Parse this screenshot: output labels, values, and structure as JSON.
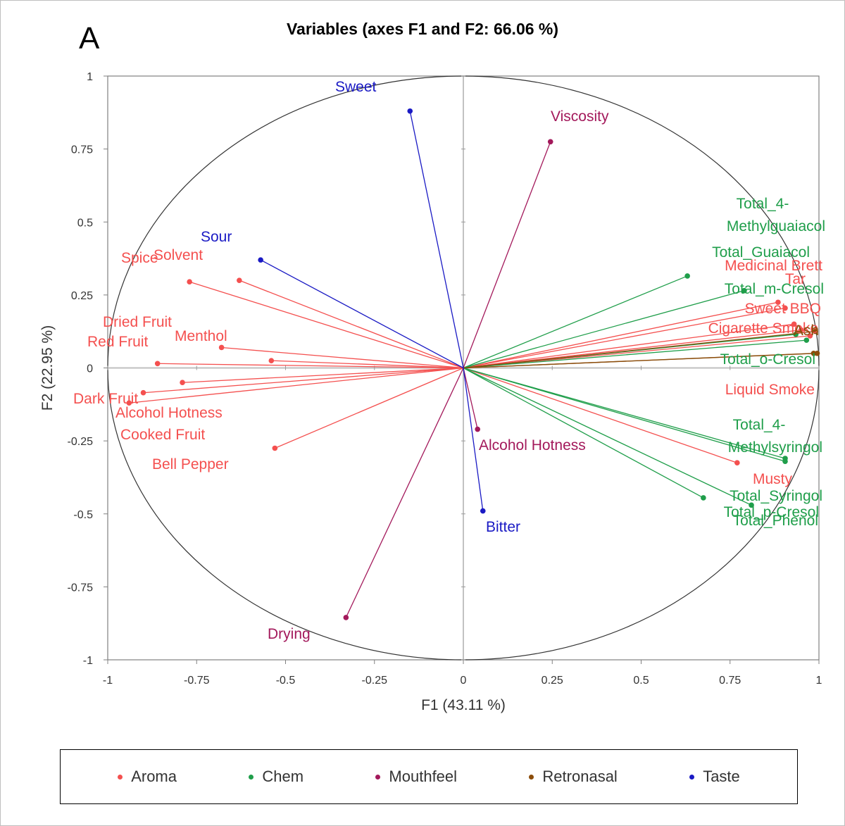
{
  "panel_label": "A",
  "chart_data": {
    "type": "scatter",
    "title": "Variables (axes F1 and F2: 66.06 %)",
    "xlabel": "F1 (43.11 %)",
    "ylabel": "F2 (22.95 %)",
    "xlim": [
      -1,
      1
    ],
    "ylim": [
      -1,
      1
    ],
    "x_ticks": [
      "-1",
      "-0.75",
      "-0.5",
      "-0.25",
      "0",
      "0.25",
      "0.5",
      "0.75",
      "1"
    ],
    "y_ticks": [
      "1",
      "0.75",
      "0.5",
      "0.25",
      "0",
      "-0.25",
      "-0.5",
      "-0.75",
      "-1"
    ],
    "correlation_circle": true,
    "legend_position": "bottom",
    "series": [
      {
        "name": "Aroma",
        "color": "#f4504f",
        "points": [
          {
            "label": "Spice",
            "x": -0.77,
            "y": 0.295
          },
          {
            "label": "Solvent",
            "x": -0.63,
            "y": 0.3
          },
          {
            "label": "Dried Fruit",
            "x": -0.54,
            "y": 0.025
          },
          {
            "label": "Red Fruit",
            "x": -0.86,
            "y": 0.015
          },
          {
            "label": "Menthol",
            "x": -0.68,
            "y": 0.07
          },
          {
            "label": "Dark Fruit",
            "x": -0.9,
            "y": -0.085
          },
          {
            "label": "Alcohol Hotness",
            "x": -0.94,
            "y": -0.12
          },
          {
            "label": "Cooked Fruit",
            "x": -0.79,
            "y": -0.05
          },
          {
            "label": "Bell Pepper",
            "x": -0.53,
            "y": -0.275
          },
          {
            "label": "Medicinal Brett",
            "x": 0.885,
            "y": 0.225
          },
          {
            "label": "Tar",
            "x": 0.905,
            "y": 0.205
          },
          {
            "label": "Sweet BBQ",
            "x": 0.93,
            "y": 0.15
          },
          {
            "label": "Cigarette Smoke",
            "x": 0.95,
            "y": 0.13
          },
          {
            "label": "Liquid Smoke",
            "x": 0.975,
            "y": 0.11
          },
          {
            "label": "Musty",
            "x": 0.77,
            "y": -0.325
          }
        ]
      },
      {
        "name": "Chem",
        "color": "#1f9e4a",
        "points": [
          {
            "label": "Total_4-Methylguaiacol",
            "x": 0.63,
            "y": 0.315
          },
          {
            "label": "Total_Guaiacol",
            "x": 0.79,
            "y": 0.265
          },
          {
            "label": "Total_m-Cresol",
            "x": 0.935,
            "y": 0.115
          },
          {
            "label": "Total_o-Cresol",
            "x": 0.965,
            "y": 0.095
          },
          {
            "label": "Total_4-Methylsyringol",
            "x": 0.905,
            "y": -0.32
          },
          {
            "label": "Total_Syringol",
            "x": 0.675,
            "y": -0.445
          },
          {
            "label": "Total_p-Cresol",
            "x": 0.81,
            "y": -0.47
          },
          {
            "label": "Total_Phenol",
            "x": 0.905,
            "y": -0.31
          }
        ]
      },
      {
        "name": "Mouthfeel",
        "color": "#a3195b",
        "points": [
          {
            "label": "Viscosity",
            "x": 0.245,
            "y": 0.775
          },
          {
            "label": "Alcohol Hotness",
            "x": 0.04,
            "y": -0.21
          },
          {
            "label": "Drying",
            "x": -0.33,
            "y": -0.855
          }
        ]
      },
      {
        "name": "Retronasal",
        "color": "#8b4c0a",
        "points": [
          {
            "label": "Ash",
            "x": 0.985,
            "y": 0.05
          },
          {
            "label": "",
            "x": 0.995,
            "y": 0.05
          },
          {
            "label": "",
            "x": 0.99,
            "y": 0.125
          }
        ]
      },
      {
        "name": "Taste",
        "color": "#1a1ac4",
        "points": [
          {
            "label": "Sweet",
            "x": -0.15,
            "y": 0.88
          },
          {
            "label": "Sour",
            "x": -0.57,
            "y": 0.37
          },
          {
            "label": "Bitter",
            "x": 0.055,
            "y": -0.49
          }
        ]
      }
    ]
  }
}
